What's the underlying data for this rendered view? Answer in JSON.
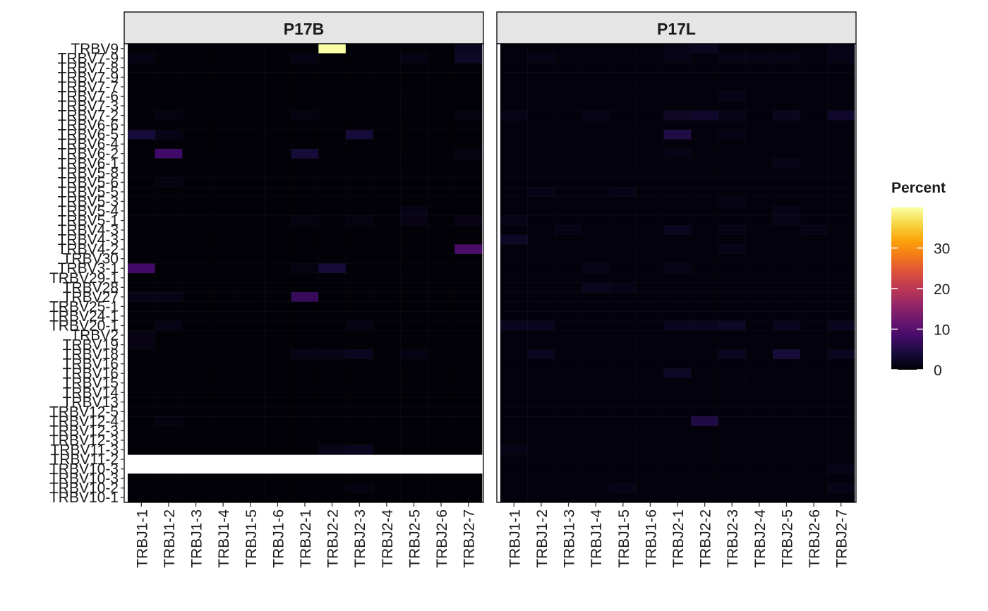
{
  "chart_data": {
    "type": "heatmap",
    "facets": [
      "P17B",
      "P17L"
    ],
    "x_categories": [
      "TRBJ1-1",
      "TRBJ1-2",
      "TRBJ1-3",
      "TRBJ1-4",
      "TRBJ1-5",
      "TRBJ1-6",
      "TRBJ2-1",
      "TRBJ2-2",
      "TRBJ2-3",
      "TRBJ2-4",
      "TRBJ2-5",
      "TRBJ2-6",
      "TRBJ2-7"
    ],
    "y_categories": [
      "TRBV9",
      "TRBV7-9",
      "TRBV7-8",
      "TRBV7-9",
      "TRBV7-7",
      "TRBV7-6",
      "TRBV7-3",
      "TRBV7-2",
      "TRBV6-6",
      "TRBV6-5",
      "TRBV6-4",
      "TRBV6-2",
      "TRBV6-1",
      "TRBV5-8",
      "TRBV5-6",
      "TRBV5-5",
      "TRBV5-3",
      "TRBV5-4",
      "TRBV5-1",
      "TRBV4-3",
      "TRBV4-3",
      "TRBV4-2",
      "TRBV30",
      "TRBV3-1",
      "TRBV29-1",
      "TRBV28",
      "TRBV27",
      "TRBV25-1",
      "TRBV24-1",
      "TRBV20-1",
      "TRBV2",
      "TRBV19",
      "TRBV18",
      "TRBV16",
      "TRBV16",
      "TRBV15",
      "TRBV14",
      "TRBV13",
      "TRBV12-5",
      "TRBV12-4",
      "TRBV12-3",
      "TRBV12-3",
      "TRBV11-3",
      "TRBV11-2",
      "TRBV10-3",
      "TRBV10-3",
      "TRBV10-2",
      "TRBV10-1"
    ],
    "legend": {
      "title": "Percent",
      "ticks": [
        0,
        10,
        20,
        30
      ],
      "range": [
        0,
        40
      ],
      "colormap": "inferno",
      "placement": "right"
    },
    "missing_rows": {
      "P17B": [
        43,
        44
      ]
    },
    "base_values": {
      "P17B": 0.2,
      "P17L": 0.5
    },
    "cells": {
      "P17B": [
        {
          "y": 0,
          "x": 7,
          "v": 40
        },
        {
          "y": 0,
          "x": 12,
          "v": 2
        },
        {
          "y": 1,
          "x": 12,
          "v": 2.5
        },
        {
          "y": 1,
          "x": 0,
          "v": 1.2
        },
        {
          "y": 1,
          "x": 6,
          "v": 1.2
        },
        {
          "y": 1,
          "x": 10,
          "v": 1.2
        },
        {
          "y": 7,
          "x": 1,
          "v": 1
        },
        {
          "y": 7,
          "x": 6,
          "v": 1
        },
        {
          "y": 7,
          "x": 12,
          "v": 1
        },
        {
          "y": 9,
          "x": 0,
          "v": 4
        },
        {
          "y": 9,
          "x": 1,
          "v": 1.5
        },
        {
          "y": 9,
          "x": 8,
          "v": 4
        },
        {
          "y": 11,
          "x": 1,
          "v": 8
        },
        {
          "y": 11,
          "x": 6,
          "v": 4
        },
        {
          "y": 11,
          "x": 12,
          "v": 1
        },
        {
          "y": 14,
          "x": 1,
          "v": 1
        },
        {
          "y": 17,
          "x": 10,
          "v": 1.5
        },
        {
          "y": 18,
          "x": 10,
          "v": 1.2
        },
        {
          "y": 18,
          "x": 12,
          "v": 1.2
        },
        {
          "y": 18,
          "x": 6,
          "v": 1
        },
        {
          "y": 18,
          "x": 8,
          "v": 1
        },
        {
          "y": 21,
          "x": 12,
          "v": 9
        },
        {
          "y": 23,
          "x": 0,
          "v": 8
        },
        {
          "y": 23,
          "x": 7,
          "v": 4
        },
        {
          "y": 23,
          "x": 6,
          "v": 1
        },
        {
          "y": 26,
          "x": 6,
          "v": 7
        },
        {
          "y": 26,
          "x": 0,
          "v": 1.5
        },
        {
          "y": 26,
          "x": 1,
          "v": 1.5
        },
        {
          "y": 29,
          "x": 1,
          "v": 1.5
        },
        {
          "y": 29,
          "x": 8,
          "v": 1.2
        },
        {
          "y": 30,
          "x": 0,
          "v": 1.2
        },
        {
          "y": 31,
          "x": 0,
          "v": 1.2
        },
        {
          "y": 32,
          "x": 6,
          "v": 1.5
        },
        {
          "y": 32,
          "x": 7,
          "v": 1.5
        },
        {
          "y": 32,
          "x": 8,
          "v": 2
        },
        {
          "y": 32,
          "x": 10,
          "v": 1.2
        },
        {
          "y": 39,
          "x": 1,
          "v": 1
        },
        {
          "y": 42,
          "x": 7,
          "v": 1.5
        },
        {
          "y": 42,
          "x": 8,
          "v": 2
        },
        {
          "y": 46,
          "x": 8,
          "v": 1
        }
      ],
      "P17L": [
        {
          "y": 0,
          "x": 7,
          "v": 2
        },
        {
          "y": 0,
          "x": 6,
          "v": 1.5
        },
        {
          "y": 0,
          "x": 12,
          "v": 1.5
        },
        {
          "y": 1,
          "x": 1,
          "v": 1.5
        },
        {
          "y": 1,
          "x": 6,
          "v": 1.5
        },
        {
          "y": 1,
          "x": 8,
          "v": 1.5
        },
        {
          "y": 1,
          "x": 9,
          "v": 1.5
        },
        {
          "y": 1,
          "x": 10,
          "v": 1.5
        },
        {
          "y": 1,
          "x": 12,
          "v": 1.5
        },
        {
          "y": 5,
          "x": 8,
          "v": 1.5
        },
        {
          "y": 7,
          "x": 0,
          "v": 1.5
        },
        {
          "y": 7,
          "x": 3,
          "v": 1.5
        },
        {
          "y": 7,
          "x": 6,
          "v": 2.5
        },
        {
          "y": 7,
          "x": 7,
          "v": 3
        },
        {
          "y": 7,
          "x": 8,
          "v": 1.5
        },
        {
          "y": 7,
          "x": 10,
          "v": 2
        },
        {
          "y": 7,
          "x": 12,
          "v": 3
        },
        {
          "y": 9,
          "x": 6,
          "v": 5
        },
        {
          "y": 9,
          "x": 8,
          "v": 1.2
        },
        {
          "y": 11,
          "x": 6,
          "v": 1.5
        },
        {
          "y": 12,
          "x": 10,
          "v": 1.5
        },
        {
          "y": 15,
          "x": 1,
          "v": 1.5
        },
        {
          "y": 15,
          "x": 4,
          "v": 1.5
        },
        {
          "y": 16,
          "x": 8,
          "v": 1.2
        },
        {
          "y": 17,
          "x": 10,
          "v": 1.5
        },
        {
          "y": 18,
          "x": 10,
          "v": 1.5
        },
        {
          "y": 18,
          "x": 0,
          "v": 1.5
        },
        {
          "y": 19,
          "x": 2,
          "v": 1.5
        },
        {
          "y": 19,
          "x": 6,
          "v": 2
        },
        {
          "y": 19,
          "x": 8,
          "v": 1.5
        },
        {
          "y": 19,
          "x": 11,
          "v": 1.5
        },
        {
          "y": 20,
          "x": 0,
          "v": 2.5
        },
        {
          "y": 21,
          "x": 8,
          "v": 1.5
        },
        {
          "y": 23,
          "x": 3,
          "v": 1.5
        },
        {
          "y": 23,
          "x": 6,
          "v": 1.5
        },
        {
          "y": 25,
          "x": 3,
          "v": 2
        },
        {
          "y": 25,
          "x": 4,
          "v": 1.5
        },
        {
          "y": 29,
          "x": 0,
          "v": 2
        },
        {
          "y": 29,
          "x": 1,
          "v": 2
        },
        {
          "y": 29,
          "x": 6,
          "v": 2
        },
        {
          "y": 29,
          "x": 7,
          "v": 2
        },
        {
          "y": 29,
          "x": 8,
          "v": 2.5
        },
        {
          "y": 29,
          "x": 10,
          "v": 2
        },
        {
          "y": 29,
          "x": 12,
          "v": 2
        },
        {
          "y": 32,
          "x": 1,
          "v": 2
        },
        {
          "y": 32,
          "x": 8,
          "v": 2
        },
        {
          "y": 32,
          "x": 10,
          "v": 4
        },
        {
          "y": 32,
          "x": 12,
          "v": 2
        },
        {
          "y": 34,
          "x": 6,
          "v": 2.5
        },
        {
          "y": 39,
          "x": 7,
          "v": 5
        },
        {
          "y": 42,
          "x": 0,
          "v": 1.5
        },
        {
          "y": 44,
          "x": 12,
          "v": 1.5
        },
        {
          "y": 46,
          "x": 4,
          "v": 1.5
        },
        {
          "y": 46,
          "x": 12,
          "v": 1.5
        }
      ]
    }
  }
}
